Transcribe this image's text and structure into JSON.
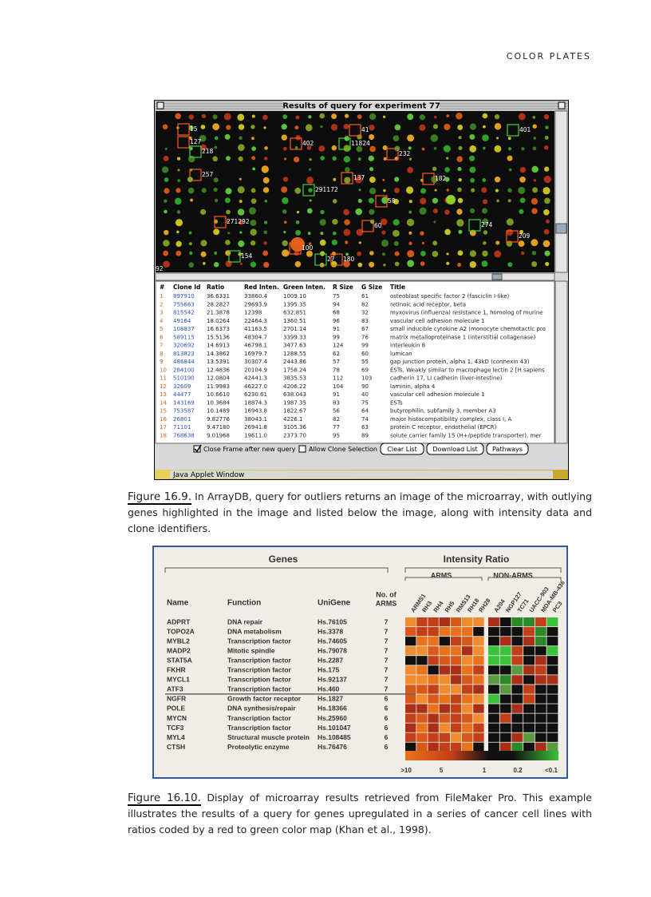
{
  "header": {
    "running_head": "COLOR PLATES"
  },
  "figure_16_9": {
    "window_title": "Results of query for experiment 77",
    "spot_labels": [
      "15",
      "127",
      "218",
      "257",
      "271292",
      "154",
      "92",
      "41",
      "11824",
      "402",
      "232",
      "401",
      "137",
      "182",
      "291172",
      "58",
      "60",
      "274",
      "209",
      "100",
      "27",
      "180"
    ],
    "table": {
      "headers": [
        "#",
        "Clone Id",
        "Ratio",
        "Red Inten.",
        "Green Inten.",
        "R Size",
        "G Size",
        "Title"
      ],
      "rows": [
        [
          "1",
          "897910",
          "36.6331",
          "33860.4",
          "1009.10",
          "75",
          "61",
          "osteoblast specific factor 2 (fasciclin I-like)"
        ],
        [
          "2",
          "755663",
          "28.2827",
          "29693.9",
          "1395.35",
          "94",
          "82",
          "retinoic acid receptor, beta"
        ],
        [
          "3",
          "815542",
          "21.3878",
          "12398",
          "632.851",
          "68",
          "32",
          "myxovirus (influenza) resistance 1, homolog of murine"
        ],
        [
          "4",
          "49164",
          "18.0264",
          "22464.3",
          "1360.51",
          "96",
          "83",
          "vascular cell adhesion molecule 1"
        ],
        [
          "5",
          "108837",
          "16.6373",
          "41163.5",
          "2701.14",
          "91",
          "67",
          "small inducible cytokine A2 (monocyte chemotactic pro"
        ],
        [
          "6",
          "589115",
          "15.5136",
          "48304.7",
          "3399.33",
          "99",
          "76",
          "matrix metalloproteinase 1 (interstitial collagenase)"
        ],
        [
          "7",
          "320692",
          "14.6913",
          "46798.1",
          "3477.63",
          "124",
          "99",
          "interleukin 8"
        ],
        [
          "8",
          "813823",
          "14.3862",
          "16979.7",
          "1288.55",
          "62",
          "60",
          "lumican"
        ],
        [
          "9",
          "486844",
          "13.5391",
          "30307.4",
          "2443.86",
          "57",
          "55",
          "gap junction protein, alpha 1, 43kD (connexin 43)"
        ],
        [
          "10",
          "284100",
          "12.4836",
          "20104.9",
          "1758.24",
          "78",
          "69",
          "ESTs, Weakly similar to macrophage lectin 2 [H.sapiens"
        ],
        [
          "11",
          "510190",
          "12.0804",
          "42441.3",
          "3835.53",
          "112",
          "103",
          "cadherin 17, LI cadherin (liver-intestine)"
        ],
        [
          "12",
          "32609",
          "11.9983",
          "46227.0",
          "4206.22",
          "104",
          "90",
          "laminin, alpha 4"
        ],
        [
          "13",
          "44477",
          "10.6610",
          "6230.61",
          "638.043",
          "91",
          "40",
          "vascular cell adhesion molecule 1"
        ],
        [
          "14",
          "143169",
          "10.3684",
          "18874.3",
          "1987.35",
          "83",
          "75",
          "ESTs"
        ],
        [
          "15",
          "753587",
          "10.1489",
          "16943.8",
          "1822.67",
          "56",
          "64",
          "butyrophilin, subfamily 3, member A3"
        ],
        [
          "16",
          "26801",
          "9.82776",
          "38043.1",
          "4226.1",
          "82",
          "74",
          "major histocompatibility complex, class I, A"
        ],
        [
          "17",
          "71101",
          "9.47180",
          "26941.8",
          "3105.36",
          "77",
          "63",
          "protein C receptor, endothelial (EPCR)"
        ],
        [
          "18",
          "768638",
          "9.01968",
          "19611.0",
          "2373.70",
          "95",
          "89",
          "solute carrier family 15 (H+/peptide transporter), mer"
        ]
      ]
    },
    "checkboxes": [
      "Close Frame after new query",
      "Allow Clone Selection"
    ],
    "buttons": [
      "Clear List",
      "Download List",
      "Pathways"
    ],
    "status": "Java Applet Window"
  },
  "caption_16_9": {
    "label": "Figure 16.9.",
    "text": "In ArrayDB, query for outliers returns an image of the microarray, with outlying genes highlighted in the image and listed below the image, along with intensity data and clone identifiers."
  },
  "figure_16_10": {
    "group_headers": {
      "genes": "Genes",
      "intensity_ratio": "Intensity Ratio",
      "arms": "ARMS",
      "non_arms": "NON-ARMS"
    },
    "column_headers": {
      "name": "Name",
      "function": "Function",
      "unigene": "UniGene",
      "no_of_arms": [
        "No. of",
        "ARMS"
      ]
    },
    "arms_cell_lines": [
      "ARMS1",
      "RH3",
      "RH4",
      "RH5",
      "RMS13",
      "RH18",
      "RH28"
    ],
    "non_arms_cell_lines": [
      "A204",
      "NGP127",
      "TC71",
      "UACC-903",
      "MDA-MB-436",
      "PC3"
    ],
    "genes": [
      [
        "ADPRT",
        "DNA repair",
        "Hs.76105",
        "7"
      ],
      [
        "TOPO2A",
        "DNA metabolism",
        "Hs.3378",
        "7"
      ],
      [
        "MYBL2",
        "Transcription factor",
        "Hs.74605",
        "7"
      ],
      [
        "MADP2",
        "Mitotic spindle",
        "Hs.79078",
        "7"
      ],
      [
        "STAT5A",
        "Transcription factor",
        "Hs.2287",
        "7"
      ],
      [
        "FKHR",
        "Transcription factor",
        "Hs.175",
        "7"
      ],
      [
        "MYCL1",
        "Transcription factor",
        "Hs.92137",
        "7"
      ],
      [
        "ATF3",
        "Transcription factor",
        "Hs.460",
        "7"
      ],
      [
        "NGFR",
        "Growth factor receptor",
        "Hs.1827",
        "6"
      ],
      [
        "POLE",
        "DNA synthesis/repair",
        "Hs.18366",
        "6"
      ],
      [
        "MYCN",
        "Transcription factor",
        "Hs.25960",
        "6"
      ],
      [
        "TCF3",
        "Transcription factor",
        "Hs.101047",
        "6"
      ],
      [
        "MYL4",
        "Structural muscle protein",
        "Hs.108485",
        "6"
      ],
      [
        "CTSH",
        "Proteolytic enzyme",
        "Hs.76476",
        "6"
      ]
    ],
    "scale_labels": [
      ">10",
      "5",
      "1",
      "0.2",
      "<0.1"
    ]
  },
  "caption_16_10": {
    "label": "Figure 16.10.",
    "text": "Display of microarray results retrieved from FileMaker Pro. This example illustrates the results of a query for genes upregulated in a series of cancer cell lines with ratios coded by a red to green color map (Khan et al., 1998)."
  }
}
